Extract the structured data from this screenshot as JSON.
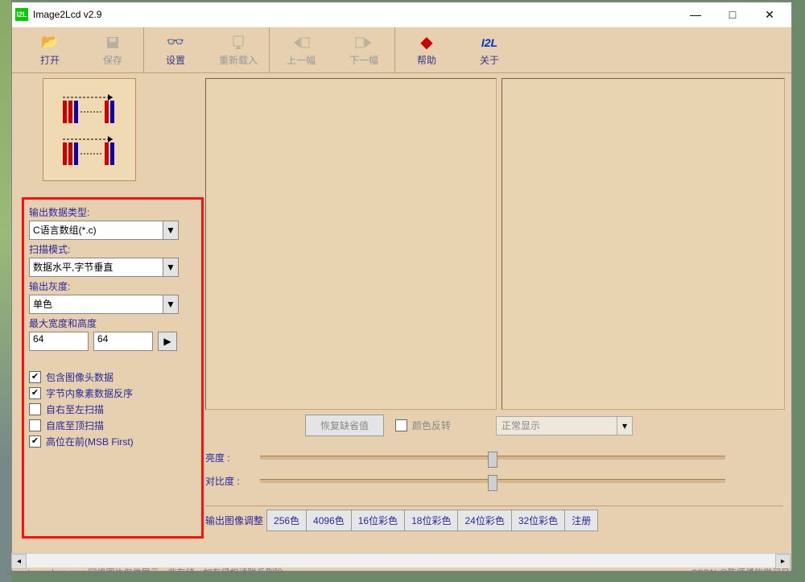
{
  "window": {
    "title": "Image2Lcd v2.9",
    "icon_text": "I2L"
  },
  "toolbar": [
    {
      "label": "打开",
      "enabled": true,
      "icon": "open",
      "sep": false
    },
    {
      "label": "保存",
      "enabled": false,
      "icon": "save",
      "sep": true
    },
    {
      "label": "设置",
      "enabled": true,
      "icon": "settings",
      "sep": false
    },
    {
      "label": "重新载入",
      "enabled": false,
      "icon": "reload",
      "sep": true
    },
    {
      "label": "上一幅",
      "enabled": false,
      "icon": "prev",
      "sep": false
    },
    {
      "label": "下一幅",
      "enabled": false,
      "icon": "next",
      "sep": true
    },
    {
      "label": "帮助",
      "enabled": true,
      "icon": "help",
      "sep": false
    },
    {
      "label": "关于",
      "enabled": true,
      "icon": "about",
      "sep": false
    }
  ],
  "fields": {
    "output_type_label": "输出数据类型:",
    "output_type_value": "C语言数组(*.c)",
    "scan_mode_label": "扫描模式:",
    "scan_mode_value": "数据水平,字节垂直",
    "gray_label": "输出灰度:",
    "gray_value": "单色",
    "dim_label": "最大宽度和高度",
    "dim_w": "64",
    "dim_h": "64"
  },
  "checks": [
    {
      "label": "包含图像头数据",
      "checked": true
    },
    {
      "label": "字节内象素数据反序",
      "checked": true
    },
    {
      "label": "自右至左扫描",
      "checked": false
    },
    {
      "label": "自底至顶扫描",
      "checked": false
    },
    {
      "label": "高位在前(MSB First)",
      "checked": true
    }
  ],
  "bottom": {
    "restore_btn": "恢复缺省值",
    "invert_label": "颜色反转",
    "display_value": "正常显示",
    "brightness_label": "亮度 :",
    "contrast_label": "对比度 :",
    "slider_pos": 0.49,
    "tabs_label": "输出图像调整",
    "tabs": [
      "256色",
      "4096色",
      "16位彩色",
      "18位彩色",
      "24位彩色",
      "32位彩色",
      "注册"
    ]
  },
  "footer": {
    "left": "www.toymoban.com  网络图片仅供展示，非存储，如有侵权请联系删除。",
    "right": "CSDN @陈师傅的学习日志"
  },
  "colors": {
    "panel_bg": "#e6d0b0",
    "highlight_border": "#ff1010",
    "label_color": "#2828a0"
  }
}
